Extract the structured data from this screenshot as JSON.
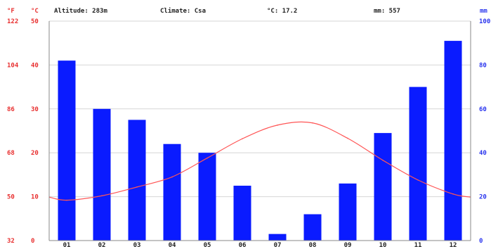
{
  "chart_data": {
    "type": "bar+line",
    "header": {
      "altitude": "Altitude: 283m",
      "climate": "Climate: Csa",
      "temp_mean": "°C: 17.2",
      "precip_total": "mm: 557"
    },
    "units": {
      "fahrenheit": "°F",
      "celsius": "°C",
      "mm": "mm"
    },
    "categories": [
      "01",
      "02",
      "03",
      "04",
      "05",
      "06",
      "07",
      "08",
      "09",
      "10",
      "11",
      "12"
    ],
    "precipitation": {
      "axis": "right",
      "values": [
        82,
        60,
        55,
        44,
        40,
        25,
        3,
        12,
        26,
        49,
        70,
        91
      ],
      "ylim": [
        0,
        100
      ],
      "ticks": [
        "0",
        "20",
        "40",
        "60",
        "80",
        "100"
      ]
    },
    "temperature": {
      "axis": "left",
      "values": [
        9.2,
        10.2,
        12.2,
        14.5,
        18.8,
        23.2,
        26.3,
        26.8,
        23.3,
        18.3,
        13.8,
        10.6
      ],
      "ylim": [
        0,
        50
      ],
      "celsius_ticks": [
        "0",
        "10",
        "20",
        "30",
        "40",
        "50"
      ],
      "fahrenheit_ticks": [
        "32",
        "50",
        "68",
        "86",
        "104",
        "122"
      ]
    },
    "grid": true,
    "colors": {
      "bars": "#0a1bff",
      "temp_line": "#ff5555",
      "celsius_axis": "#e83030",
      "fahrenheit_axis": "#e83030",
      "mm_axis": "#2a35ee",
      "grid": "#d6d6d6",
      "axis": "#888888"
    }
  }
}
